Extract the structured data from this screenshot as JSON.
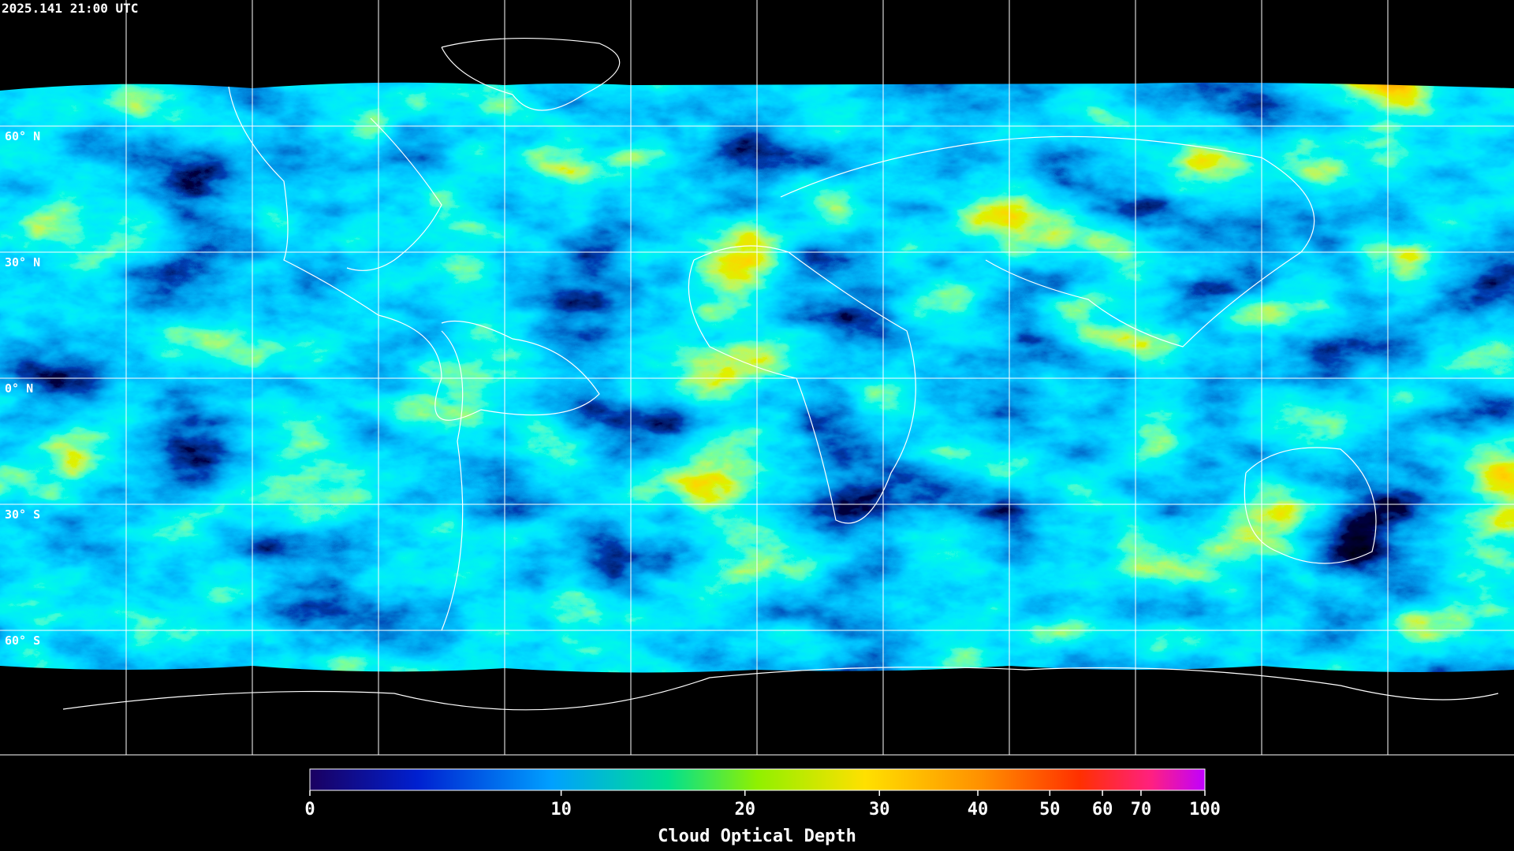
{
  "map": {
    "timestamp": "2025.141 21:00 UTC",
    "latitude_labels": [
      "60° N",
      "30° N",
      "0° N",
      "30° S",
      "60° S"
    ],
    "colorbar": {
      "label": "Cloud Optical Depth",
      "range": [
        0,
        100
      ],
      "ticks": [
        0,
        10,
        20,
        30,
        40,
        50,
        60,
        70,
        100
      ]
    }
  }
}
